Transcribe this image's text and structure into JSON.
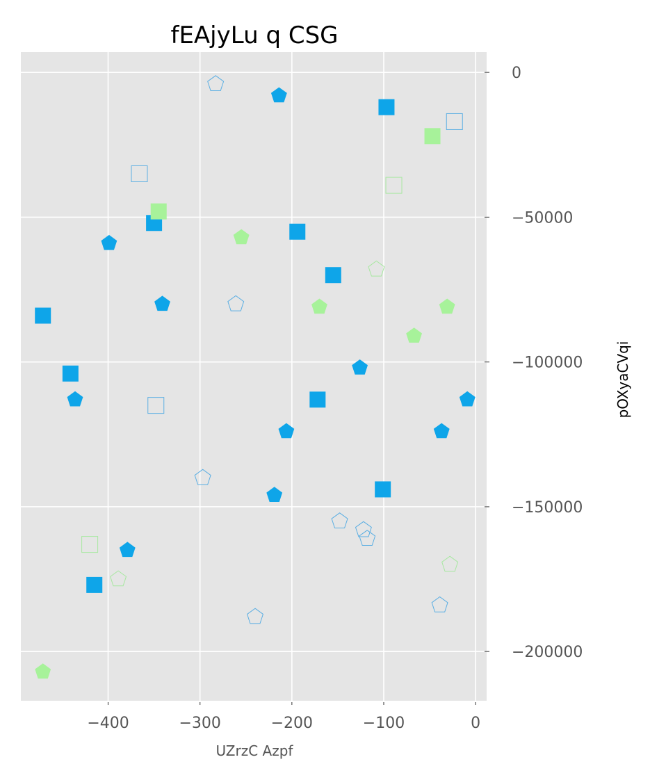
{
  "chart_data": {
    "type": "scatter",
    "title": "fEAjyLu q CSG",
    "xlabel": "UZrzC Azpf",
    "ylabel": "pOXyaCVqi",
    "xlim": [
      -495,
      12
    ],
    "ylim": [
      -217000,
      7000
    ],
    "xticks": [
      -400,
      -300,
      -200,
      -100,
      0
    ],
    "xtick_labels": [
      "−400",
      "−300",
      "−200",
      "−100",
      "0"
    ],
    "yticks": [
      0,
      -50000,
      -100000,
      -150000,
      -200000
    ],
    "ytick_labels": [
      "0",
      "−50000",
      "−100000",
      "−150000",
      "−200000"
    ],
    "y_axis_side": "right",
    "grid": true,
    "background": "#e5e5e5",
    "colors": {
      "blue": "#0ea5e9",
      "green": "#a7f29a",
      "blue_open": "#5aaee3",
      "green_open": "#a7e8a0"
    },
    "series": [
      {
        "marker": "square",
        "filled": true,
        "color": "#0ea5e9",
        "points": [
          [
            -97,
            -12000
          ],
          [
            -350,
            -52000
          ],
          [
            -194,
            -55000
          ],
          [
            -155,
            -70000
          ],
          [
            -471,
            -84000
          ],
          [
            -441,
            -104000
          ],
          [
            -172,
            -113000
          ],
          [
            -101,
            -144000
          ],
          [
            -415,
            -177000
          ]
        ]
      },
      {
        "marker": "pentagon",
        "filled": true,
        "color": "#0ea5e9",
        "points": [
          [
            -214,
            -8000
          ],
          [
            -399,
            -59000
          ],
          [
            -341,
            -80000
          ],
          [
            -436,
            -113000
          ],
          [
            -126,
            -102000
          ],
          [
            -206,
            -124000
          ],
          [
            -37,
            -124000
          ],
          [
            -9,
            -113000
          ],
          [
            -219,
            -146000
          ],
          [
            -379,
            -165000
          ]
        ]
      },
      {
        "marker": "square",
        "filled": true,
        "color": "#a7f29a",
        "points": [
          [
            -47,
            -22000
          ],
          [
            -345,
            -48000
          ]
        ]
      },
      {
        "marker": "pentagon",
        "filled": true,
        "color": "#a7f29a",
        "points": [
          [
            -255,
            -57000
          ],
          [
            -170,
            -81000
          ],
          [
            -31,
            -81000
          ],
          [
            -67,
            -91000
          ],
          [
            -471,
            -207000
          ]
        ]
      },
      {
        "marker": "square",
        "filled": false,
        "color": "#5aaee3",
        "points": [
          [
            -23,
            -17000
          ],
          [
            -366,
            -35000
          ],
          [
            -348,
            -115000
          ]
        ]
      },
      {
        "marker": "pentagon",
        "filled": false,
        "color": "#5aaee3",
        "points": [
          [
            -283,
            -4000
          ],
          [
            -261,
            -80000
          ],
          [
            -297,
            -140000
          ],
          [
            -148,
            -155000
          ],
          [
            -122,
            -158000
          ],
          [
            -118,
            -161000
          ],
          [
            -240,
            -188000
          ],
          [
            -39,
            -184000
          ]
        ]
      },
      {
        "marker": "square",
        "filled": false,
        "color": "#a7e8a0",
        "points": [
          [
            -89,
            -39000
          ],
          [
            -420,
            -163000
          ]
        ]
      },
      {
        "marker": "pentagon",
        "filled": false,
        "color": "#a7e8a0",
        "points": [
          [
            -108,
            -68000
          ],
          [
            -389,
            -175000
          ],
          [
            -28,
            -170000
          ]
        ]
      }
    ]
  }
}
